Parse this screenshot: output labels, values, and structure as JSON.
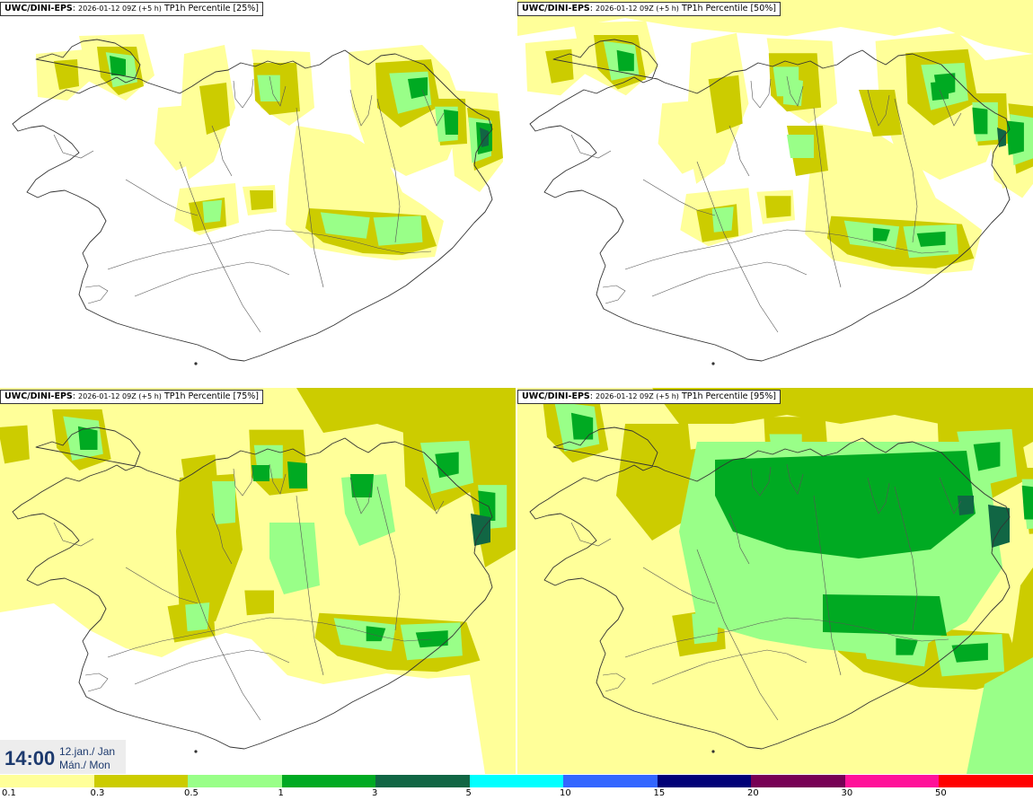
{
  "panels": [
    {
      "source": "UWC/DINI-EPS",
      "run": "2026-01-12 09Z (+5 h)",
      "field": "TP1h Percentile [25%]",
      "percentile": 25
    },
    {
      "source": "UWC/DINI-EPS",
      "run": "2026-01-12 09Z (+5 h)",
      "field": "TP1h Percentile [50%]",
      "percentile": 50
    },
    {
      "source": "UWC/DINI-EPS",
      "run": "2026-01-12 09Z (+5 h)",
      "field": "TP1h Percentile [75%]",
      "percentile": 75
    },
    {
      "source": "UWC/DINI-EPS",
      "run": "2026-01-12 09Z (+5 h)",
      "field": "TP1h Percentile [95%]",
      "percentile": 95
    }
  ],
  "valid_time": {
    "time": "14:00",
    "date_line1": "12.jan./ Jan",
    "date_line2": "Mán./ Mon"
  },
  "legend": {
    "ticks": [
      "0.1",
      "0.3",
      "0.5",
      "1",
      "3",
      "5",
      "10",
      "15",
      "20",
      "30",
      "50"
    ],
    "colors": [
      "#ffff99",
      "#cccc00",
      "#99ff88",
      "#00aa22",
      "#116644",
      "#00ffff",
      "#3366ff",
      "#000077",
      "#770055",
      "#ff1199",
      "#ff0000"
    ]
  },
  "palette": {
    "light": "#ffff99",
    "olive": "#cccc00",
    "lightgreen": "#99ff88",
    "green": "#00aa22",
    "darkgreen": "#116644",
    "coast": "#333333"
  }
}
